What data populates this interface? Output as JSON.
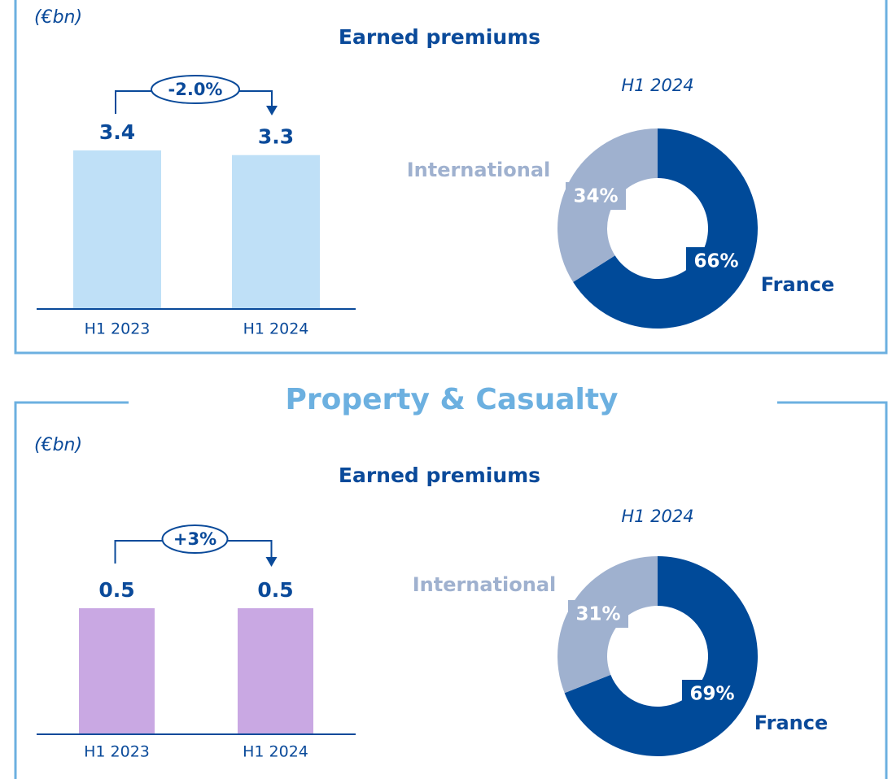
{
  "section_title": "Property & Casualty",
  "chart_data": [
    {
      "type": "bar",
      "unit": "(€bn)",
      "title": "Earned premiums",
      "categories": [
        "H1 2023",
        "H1 2024"
      ],
      "values": [
        3.4,
        3.3
      ],
      "color": "#bfe0f7",
      "annotation": "-2.0%"
    },
    {
      "type": "pie",
      "title": "H1 2024",
      "categories": [
        "France",
        "International"
      ],
      "values": [
        66,
        34
      ],
      "value_labels": [
        "66%",
        "34%"
      ],
      "colors": [
        "#004a99",
        "#9fb1cf"
      ]
    },
    {
      "type": "bar",
      "unit": "(€bn)",
      "title": "Earned premiums",
      "categories": [
        "H1 2023",
        "H1 2024"
      ],
      "values": [
        0.5,
        0.5
      ],
      "color": "#c9a8e3",
      "annotation": "+3%"
    },
    {
      "type": "pie",
      "title": "H1 2024",
      "categories": [
        "France",
        "International"
      ],
      "values": [
        69,
        31
      ],
      "value_labels": [
        "69%",
        "31%"
      ],
      "colors": [
        "#004a99",
        "#9fb1cf"
      ]
    }
  ]
}
